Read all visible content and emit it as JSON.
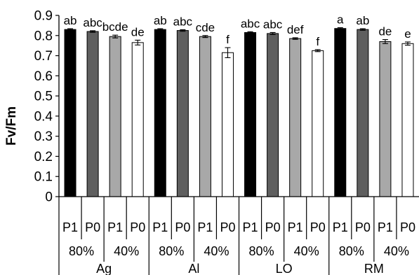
{
  "chart_data": {
    "type": "bar",
    "ylabel": "Fv/Fm",
    "ylim": [
      0,
      0.9
    ],
    "y_ticks": [
      "0",
      "0.1",
      "0.2",
      "0.3",
      "0.4",
      "0.5",
      "0.6",
      "0.7",
      "0.8",
      "0.9"
    ],
    "grid": false,
    "colors": {
      "P1_80": "#000000",
      "P0_80": "#5f5f5f",
      "P1_40": "#a8a8a8",
      "P0_40": "#ffffff"
    },
    "groups": [
      {
        "name": "Ag",
        "subgroups": [
          {
            "label": "80%",
            "bars": [
              {
                "label": "P1",
                "value": 0.83,
                "error": 0.004,
                "sig": "ab",
                "color_key": "P1_80"
              },
              {
                "label": "P0",
                "value": 0.82,
                "error": 0.004,
                "sig": "abc",
                "color_key": "P0_80"
              }
            ]
          },
          {
            "label": "40%",
            "bars": [
              {
                "label": "P1",
                "value": 0.795,
                "error": 0.007,
                "sig": "bcde",
                "color_key": "P1_40"
              },
              {
                "label": "P0",
                "value": 0.765,
                "error": 0.012,
                "sig": "de",
                "color_key": "P0_40"
              }
            ]
          }
        ]
      },
      {
        "name": "Al",
        "subgroups": [
          {
            "label": "80%",
            "bars": [
              {
                "label": "P1",
                "value": 0.83,
                "error": 0.004,
                "sig": "ab",
                "color_key": "P1_80"
              },
              {
                "label": "P0",
                "value": 0.825,
                "error": 0.004,
                "sig": "abc",
                "color_key": "P0_80"
              }
            ]
          },
          {
            "label": "40%",
            "bars": [
              {
                "label": "P1",
                "value": 0.795,
                "error": 0.005,
                "sig": "cde",
                "color_key": "P1_40"
              },
              {
                "label": "P0",
                "value": 0.715,
                "error": 0.025,
                "sig": "f",
                "color_key": "P0_40"
              }
            ]
          }
        ]
      },
      {
        "name": "LO",
        "subgroups": [
          {
            "label": "80%",
            "bars": [
              {
                "label": "P1",
                "value": 0.815,
                "error": 0.004,
                "sig": "abc",
                "color_key": "P1_80"
              },
              {
                "label": "P0",
                "value": 0.81,
                "error": 0.005,
                "sig": "abc",
                "color_key": "P0_80"
              }
            ]
          },
          {
            "label": "40%",
            "bars": [
              {
                "label": "P1",
                "value": 0.785,
                "error": 0.004,
                "sig": "def",
                "color_key": "P1_40"
              },
              {
                "label": "P0",
                "value": 0.725,
                "error": 0.005,
                "sig": "f",
                "color_key": "P0_40"
              }
            ]
          }
        ]
      },
      {
        "name": "RM",
        "subgroups": [
          {
            "label": "80%",
            "bars": [
              {
                "label": "P1",
                "value": 0.835,
                "error": 0.004,
                "sig": "a",
                "color_key": "P1_80"
              },
              {
                "label": "P0",
                "value": 0.83,
                "error": 0.004,
                "sig": "ab",
                "color_key": "P0_80"
              }
            ]
          },
          {
            "label": "40%",
            "bars": [
              {
                "label": "P1",
                "value": 0.77,
                "error": 0.01,
                "sig": "de",
                "color_key": "P1_40"
              },
              {
                "label": "P0",
                "value": 0.76,
                "error": 0.008,
                "sig": "e",
                "color_key": "P0_40"
              }
            ]
          }
        ]
      }
    ]
  }
}
